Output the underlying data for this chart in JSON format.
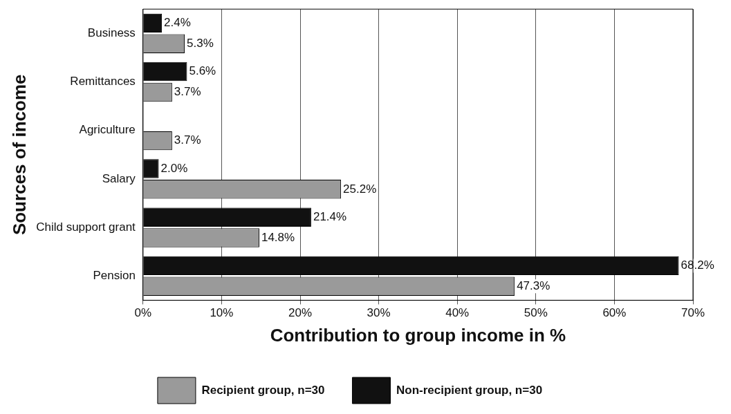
{
  "chart_data": {
    "type": "bar",
    "orientation": "horizontal",
    "xlabel": "Contribution to group income in %",
    "ylabel": "Sources of income",
    "categories": [
      "Business",
      "Remittances",
      "Agriculture",
      "Salary",
      "Child support grant",
      "Pension"
    ],
    "series": [
      {
        "name": "Non-recipient group, n=30",
        "color": "#111111",
        "values": [
          2.4,
          5.6,
          null,
          2.0,
          21.4,
          68.2
        ],
        "value_labels": [
          "2.4%",
          "5.6%",
          null,
          "2.0%",
          "21.4%",
          "68.2%"
        ]
      },
      {
        "name": "Recipient group, n=30",
        "color": "#9a9a9a",
        "values": [
          5.3,
          3.7,
          3.7,
          25.2,
          14.8,
          47.3
        ],
        "value_labels": [
          "5.3%",
          "3.7%",
          "3.7%",
          "25.2%",
          "14.8%",
          "47.3%"
        ]
      }
    ],
    "xlim": [
      0,
      70
    ],
    "xticks": [
      {
        "value": 0,
        "label": "0%"
      },
      {
        "value": 10,
        "label": "10%"
      },
      {
        "value": 20,
        "label": "20%"
      },
      {
        "value": 30,
        "label": "30%"
      },
      {
        "value": 40,
        "label": "40%"
      },
      {
        "value": 50,
        "label": "50%"
      },
      {
        "value": 60,
        "label": "60%"
      },
      {
        "value": 70,
        "label": "70%"
      }
    ],
    "grid": "x",
    "legend": "bottom"
  }
}
